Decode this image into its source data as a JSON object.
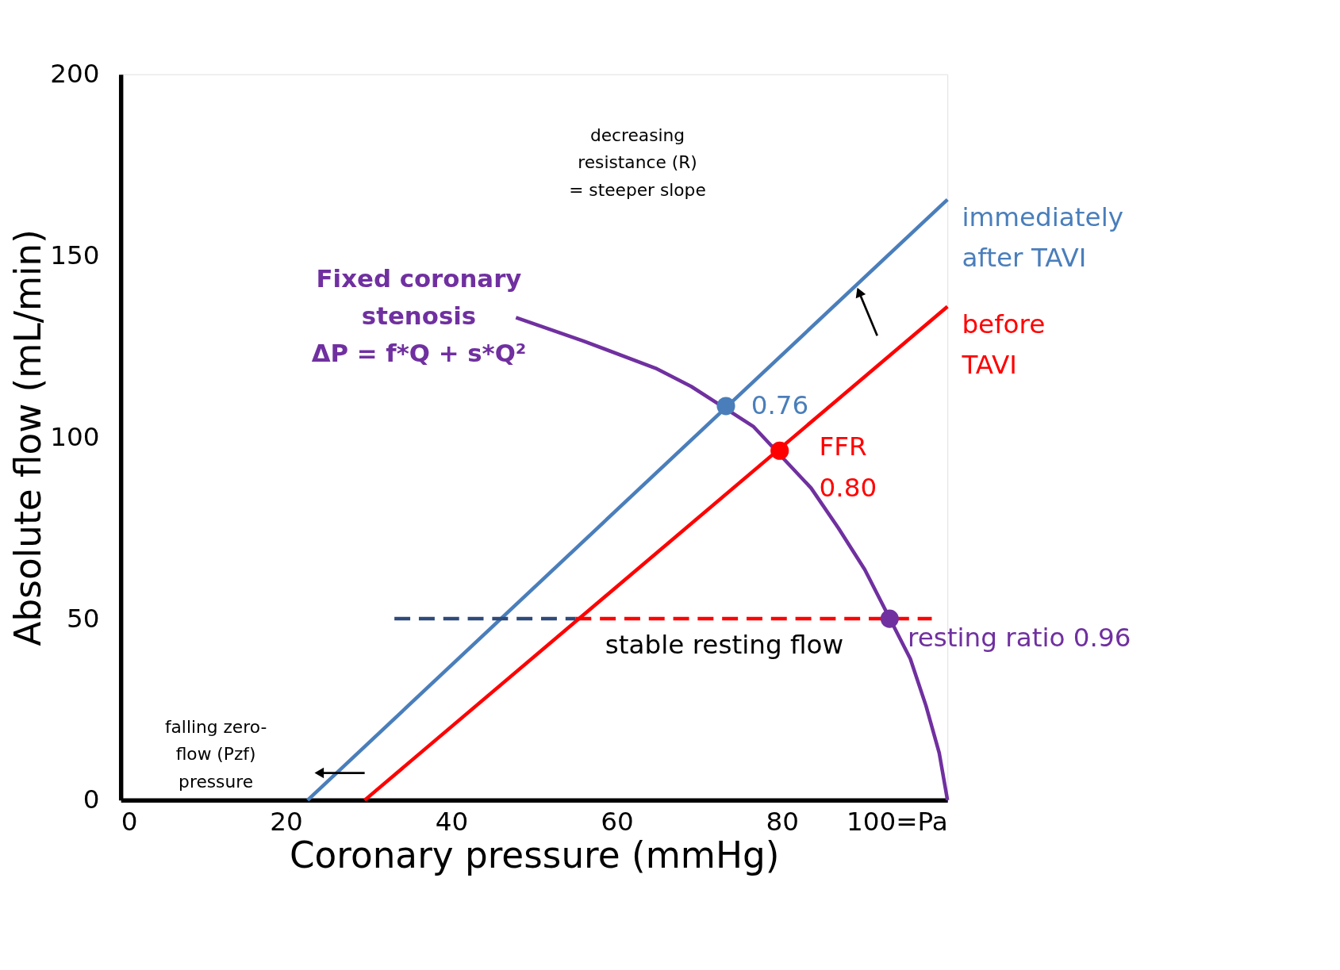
{
  "chart_data": {
    "type": "line",
    "xlabel": "Coronary pressure (mmHg)",
    "ylabel": "Absolute flow (mL/min)",
    "xlim": [
      0,
      100
    ],
    "ylim": [
      0,
      200
    ],
    "xticks": [
      0,
      20,
      40,
      60,
      80,
      {
        "value": 100,
        "label": "100=Pa"
      }
    ],
    "yticks": [
      0,
      50,
      100,
      150,
      200
    ],
    "grid": false,
    "legend": false,
    "line_style": "solid",
    "marker": "none",
    "series": [
      {
        "name": "immediately\nafter TAVI",
        "color": "#4a7ebb",
        "x": [
          22.6,
          100
        ],
        "values": [
          0,
          165.5
        ]
      },
      {
        "name": "before\nTAVI",
        "color": "#ff0000",
        "x": [
          29.5,
          100
        ],
        "values": [
          0,
          136
        ]
      },
      {
        "name": "Fixed coronary\nstenosis\nΔP = f*Q + s*Q²",
        "color": "#7030a0",
        "x": [
          47.8,
          56,
          64.7,
          69,
          76.5,
          83.5,
          86.8,
          90,
          95.5,
          97.4,
          99,
          100
        ],
        "values": [
          133,
          126.5,
          119,
          114,
          103,
          86,
          75,
          63.5,
          39,
          26,
          13,
          0
        ]
      },
      {
        "type": "line",
        "line_style": "dashed",
        "color": "#2e4a7a",
        "x": [
          33.1,
          55
        ],
        "values": [
          50,
          50
        ]
      },
      {
        "type": "line",
        "line_style": "dashed",
        "color": "#ff0000",
        "x": [
          55,
          98.1
        ],
        "values": [
          50,
          50
        ]
      },
      {
        "type": "scatter",
        "marker": "circle",
        "x": [
          73.2,
          79.7,
          93
        ],
        "values": [
          108.6,
          96.3,
          50
        ],
        "colors": [
          "#4a7ebb",
          "#ff0000",
          "#7030a0"
        ]
      }
    ],
    "annotations": [
      {
        "text": "0.76",
        "x": 73.2,
        "y": 108.6
      },
      {
        "text": "FFR\n0.80",
        "x": 79.7,
        "y": 96.3
      },
      {
        "text": "resting ratio 0.96",
        "x": 93,
        "y": 50
      },
      {
        "text": "stable resting flow",
        "x": 73,
        "y": 50
      },
      "decreasing\nresistance (R)\n= steeper slope",
      "falling zero-\nflow (Pzf)\npressure"
    ]
  }
}
